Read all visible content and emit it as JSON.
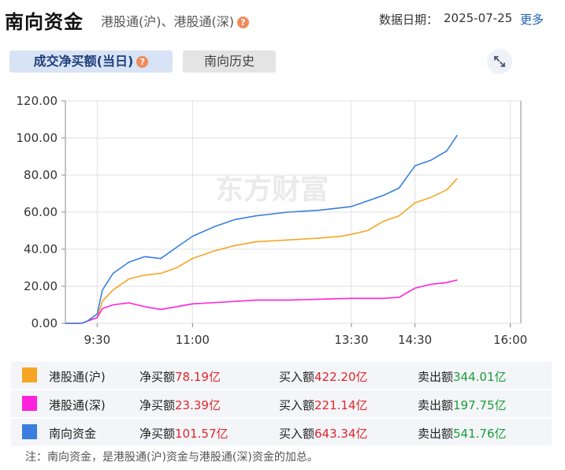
{
  "header": {
    "title": "南向资金",
    "subtitle": "港股通(沪)、港股通(深)",
    "help_glyph": "?",
    "date_label": "数据日期：",
    "date_value": "2025-07-25",
    "more_link": "更多"
  },
  "tabs": [
    {
      "label": "成交净买额(当日)",
      "active": true
    },
    {
      "label": "南向历史",
      "active": false
    }
  ],
  "expand_icon": "expand-arrows-icon",
  "colors": {
    "hk_sh": "#f5a623",
    "hk_sz": "#ff22dd",
    "southbound": "#3a7fdf",
    "red": "#e0262c",
    "green": "#1a9d3a"
  },
  "chart_data": {
    "type": "line",
    "ylim": [
      0,
      120
    ],
    "y_ticks": [
      "0.00",
      "20.00",
      "40.00",
      "60.00",
      "80.00",
      "100.00",
      "120.00"
    ],
    "x_ticks": [
      "9:30",
      "11:00",
      "13:30",
      "14:30",
      "16:00"
    ],
    "x_range": [
      "09:00",
      "16:10"
    ],
    "watermark": "东方财富",
    "series": [
      {
        "name": "港股通(沪)",
        "color": "#f5a623",
        "points": [
          [
            "09:00",
            0
          ],
          [
            "09:15",
            0
          ],
          [
            "09:20",
            1
          ],
          [
            "09:30",
            3
          ],
          [
            "09:35",
            12
          ],
          [
            "09:45",
            18
          ],
          [
            "10:00",
            24
          ],
          [
            "10:15",
            26
          ],
          [
            "10:30",
            27
          ],
          [
            "10:45",
            30
          ],
          [
            "11:00",
            35
          ],
          [
            "11:20",
            39
          ],
          [
            "11:40",
            42
          ],
          [
            "12:00",
            44
          ],
          [
            "12:30",
            45
          ],
          [
            "13:00",
            46
          ],
          [
            "13:20",
            47
          ],
          [
            "13:30",
            48
          ],
          [
            "13:45",
            50
          ],
          [
            "14:00",
            55
          ],
          [
            "14:15",
            58
          ],
          [
            "14:30",
            65
          ],
          [
            "14:45",
            68
          ],
          [
            "15:00",
            72
          ],
          [
            "15:10",
            78.19
          ]
        ]
      },
      {
        "name": "港股通(深)",
        "color": "#ff22dd",
        "points": [
          [
            "09:00",
            0
          ],
          [
            "09:15",
            0
          ],
          [
            "09:20",
            1
          ],
          [
            "09:30",
            3
          ],
          [
            "09:35",
            8
          ],
          [
            "09:45",
            10
          ],
          [
            "10:00",
            11
          ],
          [
            "10:15",
            9
          ],
          [
            "10:30",
            7.5
          ],
          [
            "10:45",
            9
          ],
          [
            "11:00",
            10.5
          ],
          [
            "11:30",
            11.5
          ],
          [
            "12:00",
            12.5
          ],
          [
            "12:30",
            12.5
          ],
          [
            "13:00",
            13
          ],
          [
            "13:30",
            13.5
          ],
          [
            "14:00",
            13.5
          ],
          [
            "14:15",
            14
          ],
          [
            "14:30",
            19
          ],
          [
            "14:45",
            21
          ],
          [
            "15:00",
            22
          ],
          [
            "15:10",
            23.39
          ]
        ]
      },
      {
        "name": "南向资金",
        "color": "#3a7fdf",
        "points": [
          [
            "09:00",
            0
          ],
          [
            "09:15",
            0
          ],
          [
            "09:20",
            1
          ],
          [
            "09:30",
            5
          ],
          [
            "09:35",
            18
          ],
          [
            "09:45",
            27
          ],
          [
            "10:00",
            33
          ],
          [
            "10:15",
            36
          ],
          [
            "10:30",
            35
          ],
          [
            "10:45",
            41
          ],
          [
            "11:00",
            47
          ],
          [
            "11:20",
            52
          ],
          [
            "11:40",
            56
          ],
          [
            "12:00",
            58
          ],
          [
            "12:30",
            60
          ],
          [
            "13:00",
            61
          ],
          [
            "13:30",
            63
          ],
          [
            "13:45",
            66
          ],
          [
            "14:00",
            69
          ],
          [
            "14:15",
            73
          ],
          [
            "14:30",
            85
          ],
          [
            "14:45",
            88
          ],
          [
            "15:00",
            93
          ],
          [
            "15:10",
            101.57
          ]
        ]
      }
    ]
  },
  "legend": [
    {
      "name": "港股通(沪)",
      "color": "#f5a623",
      "net_label": "净买额",
      "net_value": "78.19亿",
      "buy_label": "买入额",
      "buy_value": "422.20亿",
      "sell_label": "卖出额",
      "sell_value": "344.01亿"
    },
    {
      "name": "港股通(深)",
      "color": "#ff22dd",
      "net_label": "净买额",
      "net_value": "23.39亿",
      "buy_label": "买入额",
      "buy_value": "221.14亿",
      "sell_label": "卖出额",
      "sell_value": "197.75亿"
    },
    {
      "name": "南向资金",
      "color": "#3a7fdf",
      "net_label": "净买额",
      "net_value": "101.57亿",
      "buy_label": "买入额",
      "buy_value": "643.34亿",
      "sell_label": "卖出额",
      "sell_value": "541.76亿"
    }
  ],
  "footnote": "注：南向资金，是港股通(沪)资金与港股通(深)资金的加总。"
}
